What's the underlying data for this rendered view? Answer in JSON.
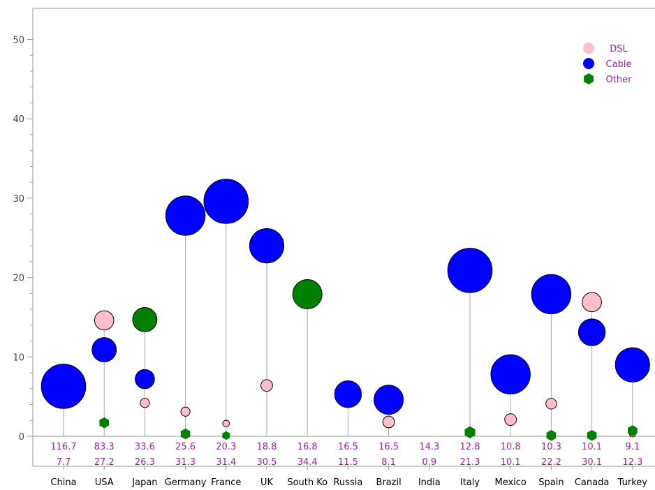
{
  "chart_data": {
    "type": "scatter",
    "subtype": "bubble-needle",
    "title": "",
    "xlabel": "",
    "ylabel": "",
    "ylim": [
      0,
      50
    ],
    "yticks": [
      0,
      10,
      20,
      30,
      40,
      50
    ],
    "grid": false,
    "legend_position": "top-right",
    "categories": [
      "China",
      "USA",
      "Japan",
      "Germany",
      "France",
      "UK",
      "South Ko",
      "Russia",
      "Brazil",
      "India",
      "Italy",
      "Mexico",
      "Spain",
      "Canada",
      "Turkey"
    ],
    "row1_labels": [
      "116.7",
      "83.3",
      "33.6",
      "25.6",
      "20.3",
      "18.8",
      "16.8",
      "16.5",
      "16.5",
      "14.3",
      "12.8",
      "10.8",
      "10.3",
      "10.1",
      "9.1"
    ],
    "row2_labels": [
      "7.7",
      "27.2",
      "26.3",
      "31.3",
      "31.4",
      "30.5",
      "34.4",
      "11.5",
      "8.1",
      "0.9",
      "21.3",
      "10.1",
      "22.2",
      "30.1",
      "12.3"
    ],
    "series": [
      {
        "name": "DSL",
        "color": "#ffc0cb",
        "values": [
          null,
          14.6,
          4.2,
          3.1,
          1.6,
          6.4,
          null,
          null,
          1.8,
          null,
          null,
          2.1,
          4.1,
          16.9,
          0.3
        ],
        "sizes": [
          null,
          3,
          1,
          1,
          0.5,
          1.5,
          null,
          null,
          1.5,
          null,
          null,
          1.5,
          1.3,
          3,
          0.4
        ]
      },
      {
        "name": "Cable",
        "color": "#0000ff",
        "values": [
          6.3,
          10.9,
          7.2,
          27.8,
          29.6,
          24.0,
          null,
          5.3,
          4.6,
          null,
          20.9,
          7.8,
          17.9,
          13.1,
          9.0
        ],
        "sizes": [
          8,
          4,
          3,
          7,
          8,
          6,
          null,
          4.5,
          5,
          null,
          8,
          7,
          7,
          4.5,
          6
        ]
      },
      {
        "name": "Other",
        "color": "#008000",
        "values": [
          null,
          1.7,
          14.7,
          0.3,
          0.1,
          null,
          17.9,
          null,
          null,
          null,
          0.5,
          null,
          0.1,
          0.1,
          0.7
        ],
        "sizes": [
          null,
          1,
          4,
          1,
          0.6,
          null,
          5,
          null,
          null,
          null,
          1.2,
          null,
          1,
          1,
          1
        ]
      }
    ],
    "colors": {
      "axis": "#888888",
      "needle": "#aaaaaa",
      "stat_text": "#a020a0",
      "legend_text": "#a020a0",
      "tick_text": "#444444"
    }
  }
}
